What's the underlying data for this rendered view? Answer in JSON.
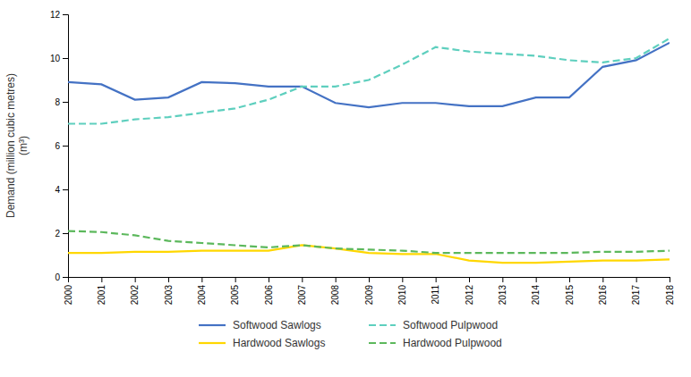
{
  "chart_data": {
    "type": "line",
    "y_label": "Demand (million cubic metres)\n(m³)",
    "x": [
      2000,
      2001,
      2002,
      2003,
      2004,
      2005,
      2006,
      2007,
      2008,
      2009,
      2010,
      2011,
      2012,
      2013,
      2014,
      2015,
      2016,
      2017,
      2018
    ],
    "xlim": [
      2000,
      2018
    ],
    "xticks": [
      2000,
      2001,
      2002,
      2003,
      2004,
      2005,
      2006,
      2007,
      2008,
      2009,
      2010,
      2011,
      2012,
      2013,
      2014,
      2015,
      2016,
      2017,
      2018
    ],
    "ylim": [
      0,
      12
    ],
    "yticks": [
      0,
      2,
      4,
      6,
      8,
      10,
      12
    ],
    "grid": false,
    "legend": "bottom",
    "series": [
      {
        "name": "Softwood Sawlogs",
        "color": "#4472C4",
        "line_style": "solid",
        "values": [
          8.9,
          8.8,
          8.1,
          8.2,
          8.9,
          8.85,
          8.7,
          8.7,
          7.95,
          7.75,
          7.95,
          7.95,
          7.8,
          7.8,
          8.2,
          8.2,
          9.6,
          9.9,
          10.7
        ]
      },
      {
        "name": "Softwood Pulpwood",
        "color": "#5ECFBE",
        "line_style": "dashed",
        "values": [
          7.0,
          7.0,
          7.2,
          7.3,
          7.5,
          7.7,
          8.1,
          8.7,
          8.7,
          9.0,
          9.7,
          10.5,
          10.3,
          10.2,
          10.1,
          9.9,
          9.8,
          10.0,
          10.9
        ]
      },
      {
        "name": "Hardwood Sawlogs",
        "color": "#FFD700",
        "line_style": "solid",
        "values": [
          1.1,
          1.1,
          1.15,
          1.15,
          1.2,
          1.2,
          1.2,
          1.45,
          1.3,
          1.1,
          1.05,
          1.05,
          0.75,
          0.65,
          0.65,
          0.7,
          0.75,
          0.75,
          0.8
        ]
      },
      {
        "name": "Hardwood Pulpwood",
        "color": "#5CB85C",
        "line_style": "dashed",
        "values": [
          2.1,
          2.05,
          1.9,
          1.65,
          1.55,
          1.45,
          1.35,
          1.45,
          1.3,
          1.25,
          1.2,
          1.1,
          1.1,
          1.1,
          1.1,
          1.1,
          1.15,
          1.15,
          1.2
        ]
      }
    ]
  }
}
